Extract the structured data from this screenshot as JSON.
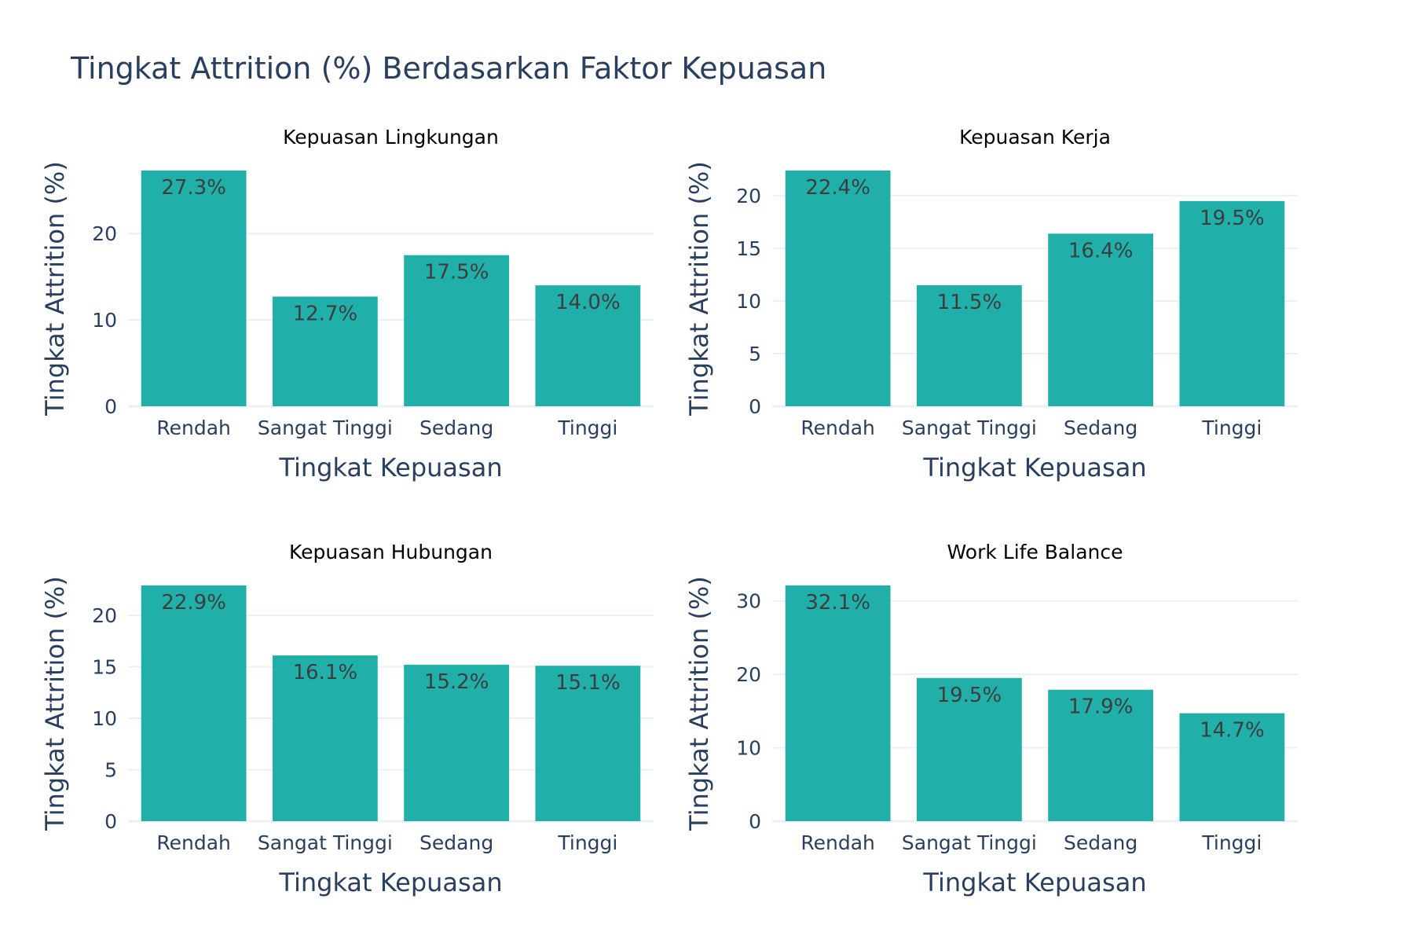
{
  "title": "Tingkat Attrition (%) Berdasarkan Faktor Kepuasan",
  "colors": {
    "bar": "#20b0a9",
    "text": "#2a3f5f",
    "grid": "#ebf0f8"
  },
  "chart_data": [
    {
      "type": "bar",
      "title": "Kepuasan Lingkungan",
      "categories": [
        "Rendah",
        "Sangat Tinggi",
        "Sedang",
        "Tinggi"
      ],
      "values": [
        27.3,
        12.7,
        17.5,
        14.0
      ],
      "labels": [
        "27.3%",
        "12.7%",
        "17.5%",
        "14.0%"
      ],
      "xlabel": "Tingkat Kepuasan",
      "ylabel": "Tingkat Attrition (%)",
      "ylim": [
        0,
        27.3
      ],
      "yticks": [
        0,
        10,
        20
      ]
    },
    {
      "type": "bar",
      "title": "Kepuasan Kerja",
      "categories": [
        "Rendah",
        "Sangat Tinggi",
        "Sedang",
        "Tinggi"
      ],
      "values": [
        22.4,
        11.5,
        16.4,
        19.5
      ],
      "labels": [
        "22.4%",
        "11.5%",
        "16.4%",
        "19.5%"
      ],
      "xlabel": "Tingkat Kepuasan",
      "ylabel": "Tingkat Attrition (%)",
      "ylim": [
        0,
        22.4
      ],
      "yticks": [
        0,
        5,
        10,
        15,
        20
      ]
    },
    {
      "type": "bar",
      "title": "Kepuasan Hubungan",
      "categories": [
        "Rendah",
        "Sangat Tinggi",
        "Sedang",
        "Tinggi"
      ],
      "values": [
        22.9,
        16.1,
        15.2,
        15.1
      ],
      "labels": [
        "22.9%",
        "16.1%",
        "15.2%",
        "15.1%"
      ],
      "xlabel": "Tingkat Kepuasan",
      "ylabel": "Tingkat Attrition (%)",
      "ylim": [
        0,
        22.9
      ],
      "yticks": [
        0,
        5,
        10,
        15,
        20
      ]
    },
    {
      "type": "bar",
      "title": "Work Life Balance",
      "categories": [
        "Rendah",
        "Sangat Tinggi",
        "Sedang",
        "Tinggi"
      ],
      "values": [
        32.1,
        19.5,
        17.9,
        14.7
      ],
      "labels": [
        "32.1%",
        "19.5%",
        "17.9%",
        "14.7%"
      ],
      "xlabel": "Tingkat Kepuasan",
      "ylabel": "Tingkat Attrition (%)",
      "ylim": [
        0,
        32.1
      ],
      "yticks": [
        0,
        10,
        20,
        30
      ]
    }
  ]
}
